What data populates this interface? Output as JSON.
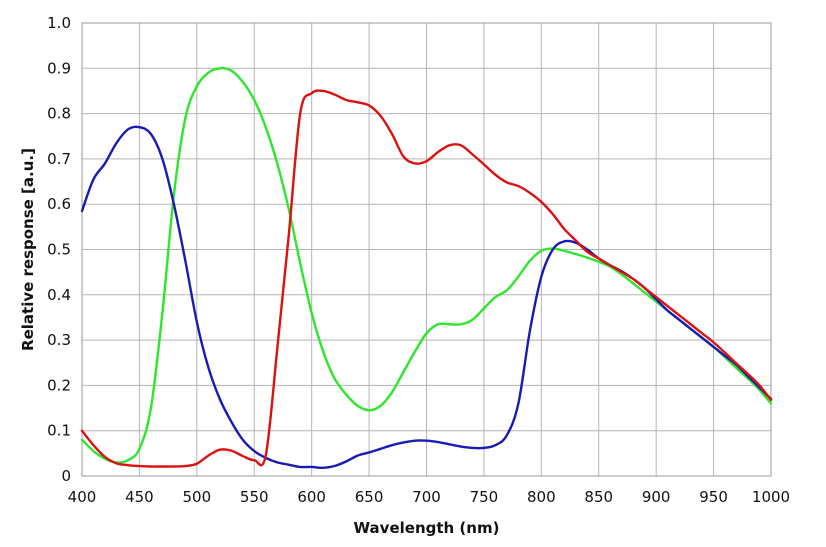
{
  "chart_data": {
    "type": "line",
    "title": "",
    "xlabel": "Wavelength (nm)",
    "ylabel": "Relative response [a.u.]",
    "xlim": [
      400,
      1000
    ],
    "ylim": [
      0,
      1.0
    ],
    "grid": true,
    "x_ticks": [
      400,
      450,
      500,
      550,
      600,
      650,
      700,
      750,
      800,
      850,
      900,
      950,
      1000
    ],
    "x_tick_labels": [
      "400",
      "450",
      "500",
      "550",
      "600",
      "650",
      "700",
      "750",
      "800",
      "850",
      "900",
      "950",
      "1000"
    ],
    "y_ticks": [
      0,
      0.1,
      0.2,
      0.3,
      0.4,
      0.5,
      0.6,
      0.7,
      0.8,
      0.9,
      1.0
    ],
    "y_tick_labels": [
      "0",
      "0.1",
      "0.2",
      "0.3",
      "0.4",
      "0.5",
      "0.6",
      "0.7",
      "0.8",
      "0.9",
      "1.0"
    ],
    "series": [
      {
        "name": "blue",
        "color": "#1a1ab4",
        "x": [
          400,
          410,
          420,
          430,
          440,
          450,
          460,
          470,
          480,
          490,
          500,
          510,
          520,
          530,
          540,
          550,
          560,
          570,
          580,
          590,
          600,
          610,
          620,
          630,
          640,
          650,
          660,
          670,
          680,
          690,
          700,
          710,
          720,
          730,
          740,
          750,
          760,
          770,
          780,
          790,
          800,
          810,
          820,
          830,
          840,
          850,
          860,
          870,
          880,
          890,
          900,
          910,
          920,
          930,
          940,
          950,
          960,
          970,
          980,
          990,
          1000
        ],
        "values": [
          0.585,
          0.655,
          0.69,
          0.735,
          0.765,
          0.77,
          0.755,
          0.7,
          0.6,
          0.475,
          0.34,
          0.24,
          0.17,
          0.12,
          0.08,
          0.055,
          0.04,
          0.03,
          0.025,
          0.02,
          0.02,
          0.018,
          0.022,
          0.032,
          0.045,
          0.052,
          0.06,
          0.068,
          0.074,
          0.078,
          0.078,
          0.075,
          0.07,
          0.065,
          0.062,
          0.062,
          0.068,
          0.09,
          0.16,
          0.32,
          0.44,
          0.5,
          0.518,
          0.515,
          0.5,
          0.48,
          0.465,
          0.452,
          0.435,
          0.415,
          0.39,
          0.365,
          0.345,
          0.325,
          0.305,
          0.285,
          0.265,
          0.245,
          0.22,
          0.195,
          0.17
        ]
      },
      {
        "name": "green",
        "color": "#2ee62e",
        "x": [
          400,
          410,
          420,
          430,
          440,
          450,
          460,
          470,
          480,
          490,
          500,
          510,
          520,
          530,
          540,
          550,
          560,
          570,
          580,
          590,
          600,
          610,
          620,
          630,
          640,
          650,
          660,
          670,
          680,
          690,
          700,
          710,
          720,
          730,
          740,
          750,
          760,
          770,
          780,
          790,
          800,
          810,
          820,
          830,
          840,
          850,
          860,
          870,
          880,
          890,
          900,
          910,
          920,
          930,
          940,
          950,
          960,
          970,
          980,
          990,
          1000
        ],
        "values": [
          0.08,
          0.055,
          0.038,
          0.03,
          0.035,
          0.06,
          0.15,
          0.36,
          0.62,
          0.79,
          0.86,
          0.89,
          0.9,
          0.895,
          0.87,
          0.83,
          0.77,
          0.69,
          0.59,
          0.47,
          0.36,
          0.275,
          0.215,
          0.18,
          0.155,
          0.145,
          0.155,
          0.185,
          0.23,
          0.275,
          0.315,
          0.335,
          0.335,
          0.335,
          0.345,
          0.37,
          0.395,
          0.41,
          0.44,
          0.475,
          0.497,
          0.502,
          0.497,
          0.49,
          0.482,
          0.473,
          0.462,
          0.445,
          0.425,
          0.405,
          0.385,
          0.365,
          0.345,
          0.325,
          0.305,
          0.285,
          0.262,
          0.238,
          0.215,
          0.19,
          0.16
        ]
      },
      {
        "name": "red",
        "color": "#dd1111",
        "x": [
          400,
          410,
          420,
          430,
          440,
          450,
          460,
          470,
          480,
          490,
          500,
          510,
          520,
          530,
          540,
          550,
          560,
          570,
          580,
          590,
          600,
          610,
          620,
          630,
          640,
          650,
          660,
          670,
          680,
          690,
          700,
          710,
          720,
          730,
          740,
          750,
          760,
          770,
          780,
          790,
          800,
          810,
          820,
          830,
          840,
          850,
          860,
          870,
          880,
          890,
          900,
          910,
          920,
          930,
          940,
          950,
          960,
          970,
          980,
          990,
          1000
        ],
        "values": [
          0.1,
          0.068,
          0.042,
          0.028,
          0.024,
          0.022,
          0.021,
          0.021,
          0.021,
          0.022,
          0.027,
          0.045,
          0.058,
          0.056,
          0.044,
          0.035,
          0.045,
          0.28,
          0.53,
          0.8,
          0.845,
          0.85,
          0.842,
          0.83,
          0.825,
          0.818,
          0.795,
          0.755,
          0.705,
          0.69,
          0.695,
          0.715,
          0.73,
          0.73,
          0.71,
          0.688,
          0.665,
          0.648,
          0.64,
          0.625,
          0.605,
          0.578,
          0.545,
          0.52,
          0.495,
          0.48,
          0.465,
          0.45,
          0.435,
          0.415,
          0.395,
          0.375,
          0.355,
          0.335,
          0.315,
          0.295,
          0.272,
          0.248,
          0.225,
          0.2,
          0.168
        ]
      }
    ]
  }
}
